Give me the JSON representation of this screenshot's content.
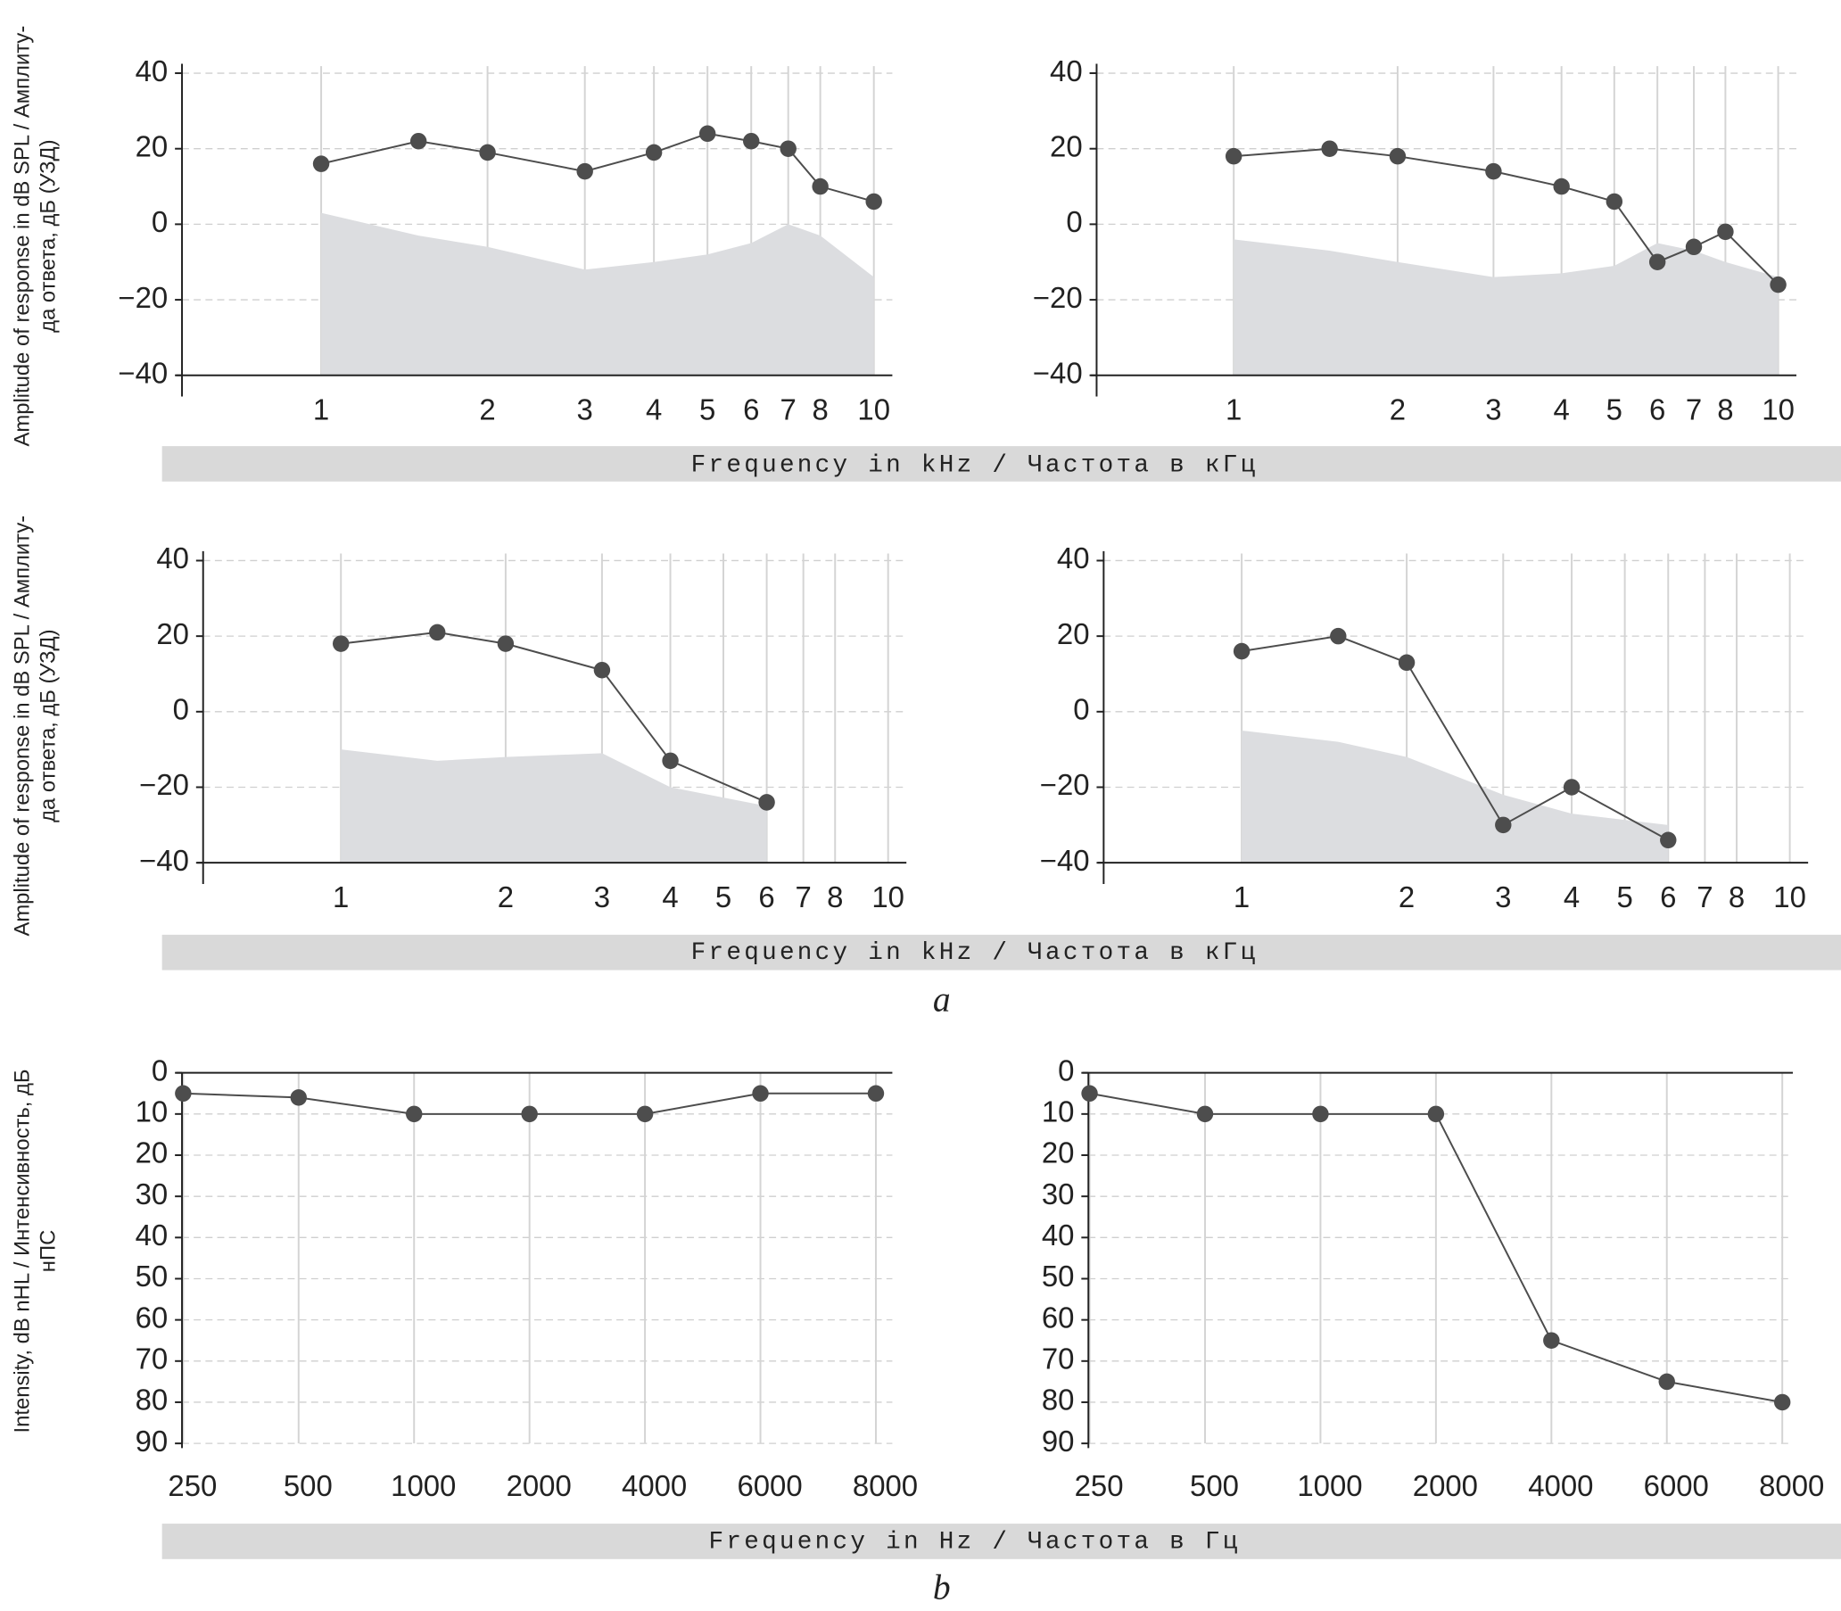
{
  "chart_data": [
    {
      "type": "line",
      "x": [
        1,
        1.5,
        2,
        3,
        4,
        5,
        6,
        7,
        8,
        10
      ],
      "xscale": "log",
      "xlim": [
        0.56,
        10.8
      ],
      "xticks": [
        1,
        2,
        3,
        4,
        5,
        6,
        7,
        8,
        10
      ],
      "ylim": [
        -40,
        40
      ],
      "yticks": [
        {
          "value": -40,
          "label": "−40"
        },
        {
          "value": -20,
          "label": "−20"
        },
        0,
        20,
        40
      ],
      "grid": true,
      "series": [
        {
          "type": "area",
          "color": "#dcdde0",
          "values": [
            3,
            -3,
            -6,
            -12,
            -10,
            -8,
            -5,
            0,
            -3,
            -14
          ]
        },
        {
          "type": "line",
          "color": "#4d4d4d",
          "values": [
            16,
            22,
            19,
            14,
            19,
            24,
            22,
            20,
            10,
            6
          ]
        }
      ]
    },
    {
      "type": "line",
      "x": [
        1,
        1.5,
        2,
        3,
        4,
        5,
        6,
        7,
        8,
        10
      ],
      "xscale": "log",
      "xlim": [
        0.56,
        10.8
      ],
      "xticks": [
        1,
        2,
        3,
        4,
        5,
        6,
        7,
        8,
        10
      ],
      "ylim": [
        -40,
        40
      ],
      "yticks": [
        {
          "value": -40,
          "label": "−40"
        },
        {
          "value": -20,
          "label": "−20"
        },
        0,
        20,
        40
      ],
      "grid": true,
      "series": [
        {
          "type": "area",
          "color": "#dcdde0",
          "values": [
            -4,
            -7,
            -10,
            -14,
            -13,
            -11,
            -5,
            -7,
            -10,
            -14
          ]
        },
        {
          "type": "line",
          "color": "#4d4d4d",
          "values": [
            18,
            20,
            18,
            14,
            10,
            6,
            -10,
            -6,
            -2,
            -16
          ]
        }
      ]
    },
    {
      "type": "line",
      "x": [
        1,
        1.5,
        2,
        3,
        4,
        6
      ],
      "xscale": "log",
      "xlim": [
        0.56,
        10.8
      ],
      "xticks": [
        1,
        2,
        3,
        4,
        5,
        6,
        7,
        8,
        10
      ],
      "ylim": [
        -40,
        40
      ],
      "yticks": [
        {
          "value": -40,
          "label": "−40"
        },
        {
          "value": -20,
          "label": "−20"
        },
        0,
        20,
        40
      ],
      "grid": true,
      "series": [
        {
          "type": "area",
          "color": "#dcdde0",
          "values": [
            -10,
            -13,
            -12,
            -11,
            -20,
            -25
          ]
        },
        {
          "type": "line",
          "color": "#4d4d4d",
          "values": [
            18,
            21,
            18,
            11,
            -13,
            -24
          ]
        }
      ]
    },
    {
      "type": "line",
      "x": [
        1,
        1.5,
        2,
        3,
        4,
        6
      ],
      "xscale": "log",
      "xlim": [
        0.56,
        10.8
      ],
      "xticks": [
        1,
        2,
        3,
        4,
        5,
        6,
        7,
        8,
        10
      ],
      "ylim": [
        -40,
        40
      ],
      "yticks": [
        {
          "value": -40,
          "label": "−40"
        },
        {
          "value": -20,
          "label": "−20"
        },
        0,
        20,
        40
      ],
      "grid": true,
      "series": [
        {
          "type": "area",
          "color": "#dcdde0",
          "values": [
            -5,
            -8,
            -12,
            -22,
            -27,
            -30
          ]
        },
        {
          "type": "line",
          "color": "#4d4d4d",
          "values": [
            16,
            20,
            13,
            -30,
            -20,
            -34
          ]
        }
      ]
    },
    {
      "type": "line",
      "categories": [
        "250",
        "500",
        "1000",
        "2000",
        "4000",
        "6000",
        "8000"
      ],
      "ylim": [
        90,
        0
      ],
      "yticks": [
        0,
        10,
        20,
        30,
        40,
        50,
        60,
        70,
        80,
        90
      ],
      "grid": true,
      "series": [
        {
          "type": "line",
          "color": "#4d4d4d",
          "values": [
            5,
            6,
            10,
            10,
            10,
            5,
            5
          ]
        }
      ]
    },
    {
      "type": "line",
      "categories": [
        "250",
        "500",
        "1000",
        "2000",
        "4000",
        "6000",
        "8000"
      ],
      "ylim": [
        90,
        0
      ],
      "yticks": [
        0,
        10,
        20,
        30,
        40,
        50,
        60,
        70,
        80,
        90
      ],
      "grid": true,
      "series": [
        {
          "type": "line",
          "color": "#4d4d4d",
          "values": [
            5,
            10,
            10,
            10,
            65,
            75,
            80
          ]
        }
      ]
    }
  ],
  "rows": [
    {
      "xlabel": "Frequency in kHz / Частота в кГц",
      "ylabel": [
        "Amplitude of response in dB SPL / Амплиту-",
        "да ответа, дБ (УЗД)"
      ]
    },
    {
      "xlabel": "Frequency in kHz / Частота в кГц",
      "ylabel": [
        "Amplitude of response in dB SPL / Амплиту-",
        "да ответа, дБ (УЗД)"
      ]
    },
    {
      "xlabel": "Frequency in Hz / Частота в Гц",
      "ylabel": [
        "Intensity, dB nHL / Интенсивность, дБ",
        "нПС"
      ]
    }
  ],
  "captions": [
    "a",
    "b"
  ]
}
